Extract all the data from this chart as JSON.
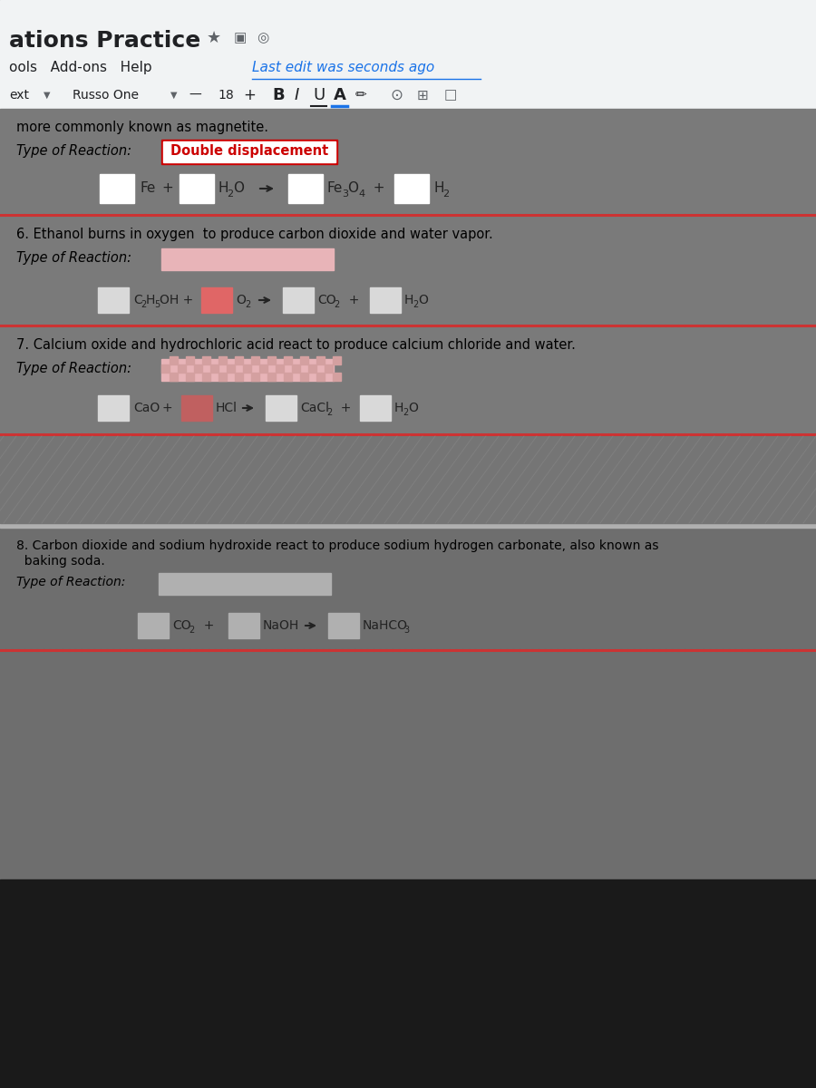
{
  "bg_toolbar": "#f1f3f4",
  "bg_upper_doc": "#7a7a7a",
  "bg_lower_doc": "#6e6e6e",
  "bg_black": "#1a1a1a",
  "title_text": "ations Practice",
  "menu_text": "ools   Add-ons   Help",
  "last_edit_text": "Last edit was seconds ago",
  "section5_magnetite": "more commonly known as magnetite.",
  "section5_type": "Type of Reaction:",
  "section5_answer": "Double displacement",
  "section6_desc": "6. Ethanol burns in oxygen  to produce carbon dioxide and water vapor.",
  "section6_type": "Type of Reaction:",
  "section7_desc": "7. Calcium oxide and hydrochloric acid react to produce calcium chloride and water.",
  "section7_type": "Type of Reaction:",
  "section8_desc_line1": "8. Carbon dioxide and sodium hydroxide react to produce sodium hydrogen carbonate, also known as",
  "section8_desc_line2": "  baking soda.",
  "section8_type": "Type of Reaction:",
  "white_box": "#ffffff",
  "light_gray_box": "#d9d9d9",
  "red_box": "#e06666",
  "pink_box": "#e8b4b8",
  "patterned_pink": "#d4a0a0",
  "dark_gray_box": "#b0b0b0",
  "separator_color": "#cc3333",
  "text_dark": "#222222",
  "text_black": "#000000"
}
